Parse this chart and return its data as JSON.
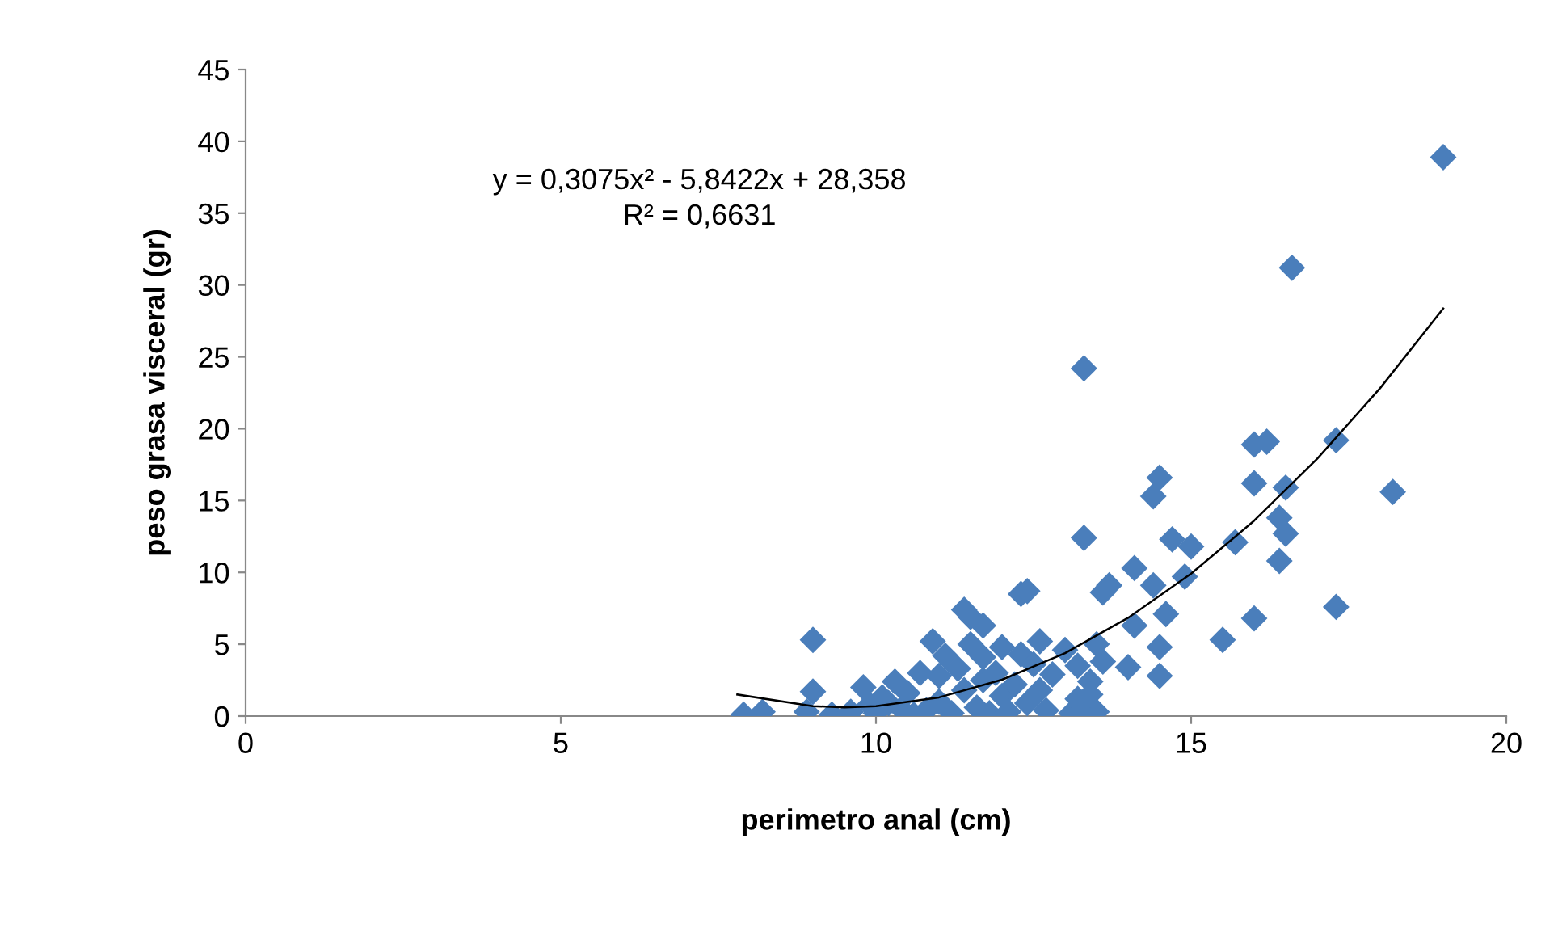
{
  "chart_data": {
    "type": "scatter",
    "xlabel": "perimetro anal (cm)",
    "ylabel": "peso grasa visceral (gr)",
    "annotations": [
      "y = 0,3075x² - 5,8422x + 28,358",
      "R² = 0,6631"
    ],
    "xlim": [
      0,
      20
    ],
    "xticks": [
      0,
      5,
      10,
      15,
      20
    ],
    "ylim": [
      0,
      45
    ],
    "yticks": [
      0,
      5,
      10,
      15,
      20,
      25,
      30,
      35,
      40,
      45
    ],
    "grid": false,
    "legend": false,
    "marker": "diamond",
    "series": [
      {
        "color": "#4a7ebb",
        "x": [
          19.0,
          16.6,
          13.3,
          17.3,
          18.2,
          16.2,
          16.0,
          16.0,
          16.5,
          14.5,
          14.4,
          16.4,
          16.5,
          15.7,
          14.7,
          15.0,
          16.4,
          14.1,
          14.9,
          14.4,
          13.7,
          17.3,
          16.0,
          14.6,
          15.5,
          14.1,
          14.5,
          14.5,
          14.0,
          13.3,
          12.3,
          11.4,
          9.0,
          12.4,
          11.5,
          11.7,
          9.0,
          8.9,
          8.2,
          7.9,
          9.3,
          9.6,
          9.8,
          9.9,
          10.0,
          10.1,
          10.3,
          10.4,
          10.5,
          10.6,
          10.8,
          10.9,
          11.0,
          11.0,
          11.1,
          11.2,
          11.3,
          11.4,
          11.5,
          11.6,
          11.7,
          11.7,
          11.8,
          11.9,
          12.0,
          12.0,
          12.1,
          12.2,
          12.3,
          12.4,
          12.5,
          12.6,
          12.6,
          12.7,
          12.8,
          13.0,
          13.1,
          13.2,
          13.2,
          13.3,
          13.4,
          13.5,
          13.5,
          13.6,
          13.4,
          13.6,
          10.2,
          10.7
        ],
        "values": [
          38.9,
          31.2,
          24.2,
          19.2,
          15.6,
          19.1,
          18.9,
          16.2,
          15.9,
          16.6,
          15.3,
          13.8,
          12.7,
          12.1,
          12.3,
          11.8,
          10.8,
          10.3,
          9.7,
          9.1,
          9.1,
          7.6,
          6.8,
          7.1,
          5.3,
          6.3,
          4.8,
          2.8,
          3.4,
          12.4,
          8.5,
          7.4,
          5.3,
          8.7,
          6.9,
          6.3,
          1.7,
          0.3,
          0.3,
          0.1,
          0.1,
          0.3,
          2.0,
          0.8,
          0.2,
          1.3,
          2.4,
          0.5,
          1.6,
          0.1,
          0.4,
          5.2,
          2.8,
          1.0,
          4.2,
          0.2,
          3.3,
          1.8,
          5.0,
          0.6,
          2.5,
          4.1,
          0.2,
          3.0,
          1.4,
          4.8,
          0.3,
          2.2,
          4.3,
          0.9,
          3.6,
          5.2,
          1.8,
          0.4,
          2.9,
          4.6,
          0.2,
          1.2,
          3.5,
          0.6,
          2.4,
          5.0,
          0.3,
          3.8,
          1.5,
          8.6,
          0.9,
          3.0
        ]
      },
      {
        "type": "line",
        "color": "#000000",
        "marker": "none",
        "x": [
          7.8,
          9,
          9.5,
          10,
          11,
          12,
          13,
          14,
          15,
          16,
          17,
          18,
          19
        ],
        "values": [
          1.5,
          0.69,
          0.61,
          0.69,
          1.3,
          2.53,
          4.38,
          6.84,
          9.91,
          13.6,
          17.91,
          22.83,
          28.37
        ]
      }
    ]
  }
}
